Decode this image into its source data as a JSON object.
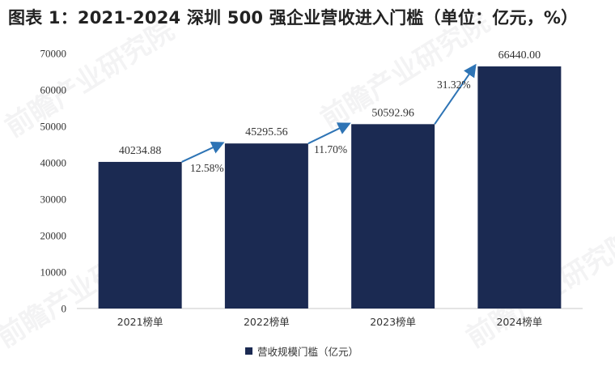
{
  "title": "图表 1：2021-2024 深圳 500 强企业营收进入门槛（单位：亿元，%）",
  "watermark": "前瞻产业研究院",
  "chart_data": {
    "type": "bar",
    "categories": [
      "2021榜单",
      "2022榜单",
      "2023榜单",
      "2024榜单"
    ],
    "series": [
      {
        "name": "营收规模门槛（亿元）",
        "values": [
          40234.88,
          45295.56,
          50592.96,
          66440.0
        ],
        "color": "#1b2a52"
      }
    ],
    "data_labels": [
      "40234.88",
      "45295.56",
      "50592.96",
      "66440.00"
    ],
    "growth_rates": [
      "12.58%",
      "11.70%",
      "31.32%"
    ],
    "ylim": [
      0,
      70000
    ],
    "yticks": [
      0,
      10000,
      20000,
      30000,
      40000,
      50000,
      60000,
      70000
    ],
    "legend_position": "bottom",
    "arrow_color": "#2e74b5"
  }
}
